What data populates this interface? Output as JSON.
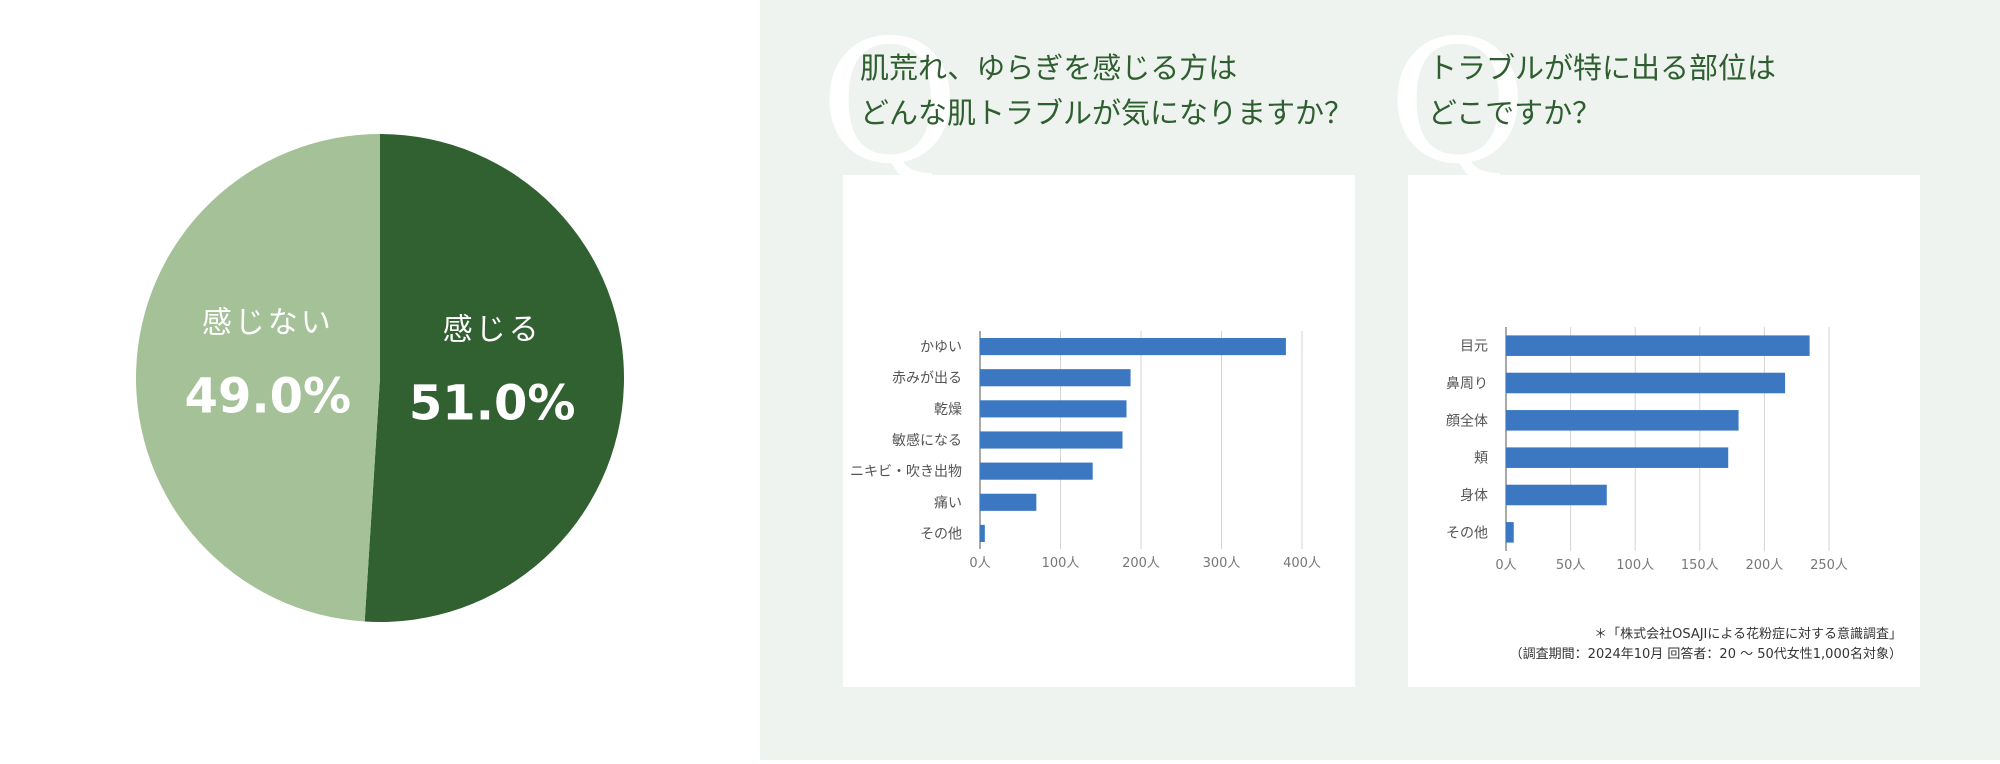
{
  "colors": {
    "dark_green": "#316031",
    "light_green": "#a4c198",
    "panel_bg": "#eef3ef",
    "bar_blue": "#3b78c1",
    "title_green": "#2f5e30"
  },
  "questions": [
    {
      "mark": "Q",
      "lines": [
        "肌荒れ、ゆらぎを感じる方は",
        "どんな肌トラブルが気になりますか？"
      ]
    },
    {
      "mark": "Q",
      "lines": [
        "トラブルが特に出る部位は",
        "どこですか？"
      ]
    }
  ],
  "note": {
    "line1": "＊「株式会社OSAJIによる花粉症に対する意識調査」",
    "line2": "（調査期間：2024年10月 回答者：20 〜 50代女性1,000名対象）"
  },
  "chart_data": [
    {
      "type": "pie",
      "slices": [
        {
          "label": "感じる",
          "value": 51.0,
          "value_label": "51.0%",
          "color": "#316031"
        },
        {
          "label": "感じない",
          "value": 49.0,
          "value_label": "49.0%",
          "color": "#a4c198"
        }
      ]
    },
    {
      "type": "bar",
      "orientation": "horizontal",
      "categories": [
        "かゆい",
        "赤みが出る",
        "乾燥",
        "敏感になる",
        "ニキビ・吹き出物",
        "痛い",
        "その他"
      ],
      "values": [
        380,
        187,
        182,
        177,
        140,
        70,
        6
      ],
      "xlim": [
        0,
        400
      ],
      "xticks": [
        "0人",
        "100人",
        "200人",
        "300人",
        "400人"
      ],
      "grid": true,
      "color": "#3b78c1"
    },
    {
      "type": "bar",
      "orientation": "horizontal",
      "categories": [
        "目元",
        "鼻周り",
        "顔全体",
        "頬",
        "身体",
        "その他"
      ],
      "values": [
        235,
        216,
        180,
        172,
        78,
        6
      ],
      "xlim": [
        0,
        250
      ],
      "xticks": [
        "0人",
        "50人",
        "100人",
        "150人",
        "200人",
        "250人"
      ],
      "grid": true,
      "color": "#3b78c1"
    }
  ]
}
